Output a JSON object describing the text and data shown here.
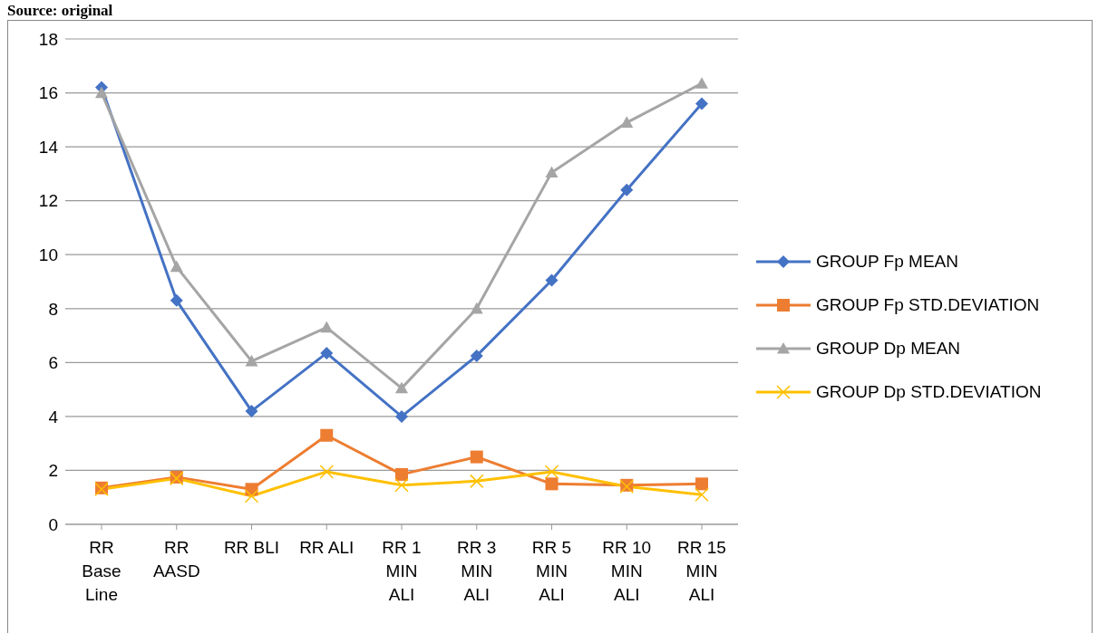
{
  "chart_data": {
    "type": "line",
    "annotations": [
      "Source: original"
    ],
    "categories": [
      "RR Base Line",
      "RR AASD",
      "RR BLI",
      "RR ALI",
      "RR 1 MIN ALI",
      "RR 3 MIN ALI",
      "RR 5 MIN ALI",
      "RR 10 MIN ALI",
      "RR 15 MIN ALI"
    ],
    "series": [
      {
        "name": "GROUP Fp MEAN",
        "color": "#4472c4",
        "marker": "diamond",
        "values": [
          16.2,
          8.3,
          4.2,
          6.35,
          4.0,
          6.25,
          9.05,
          12.4,
          15.6
        ]
      },
      {
        "name": "GROUP Fp STD.DEVIATION",
        "color": "#ed7d31",
        "marker": "square",
        "values": [
          1.35,
          1.75,
          1.3,
          3.3,
          1.85,
          2.5,
          1.5,
          1.45,
          1.5
        ]
      },
      {
        "name": "GROUP Dp MEAN",
        "color": "#a5a5a5",
        "marker": "triangle",
        "values": [
          16.0,
          9.55,
          6.05,
          7.3,
          5.05,
          8.0,
          13.05,
          14.9,
          16.35
        ]
      },
      {
        "name": "GROUP Dp STD.DEVIATION",
        "color": "#ffc000",
        "marker": "cross",
        "values": [
          1.3,
          1.7,
          1.05,
          1.95,
          1.45,
          1.6,
          1.95,
          1.4,
          1.1
        ]
      }
    ],
    "ylim": [
      0,
      18
    ],
    "yticks": [
      0,
      2,
      4,
      6,
      8,
      10,
      12,
      14,
      16,
      18
    ],
    "grid": "y",
    "legend": "right",
    "line_style": "solid"
  }
}
